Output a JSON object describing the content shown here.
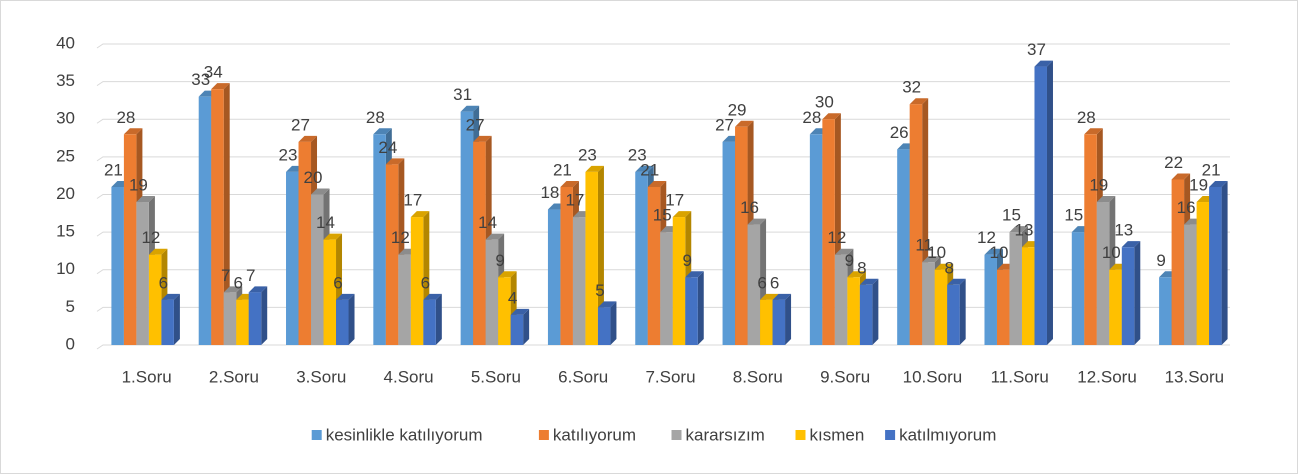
{
  "chart_data": {
    "type": "bar",
    "categories": [
      "1.Soru",
      "2.Soru",
      "3.Soru",
      "4.Soru",
      "5.Soru",
      "6.Soru",
      "7.Soru",
      "8.Soru",
      "9.Soru",
      "10.Soru",
      "11.Soru",
      "12.Soru",
      "13.Soru"
    ],
    "series": [
      {
        "name": "kesinlikle katılıyorum",
        "color": "#5b9bd5",
        "values": [
          21,
          33,
          23,
          28,
          31,
          18,
          23,
          27,
          28,
          26,
          12,
          15,
          9
        ]
      },
      {
        "name": "katılıyorum",
        "color": "#ed7d31",
        "values": [
          28,
          34,
          27,
          24,
          27,
          21,
          21,
          29,
          30,
          32,
          10,
          28,
          22
        ]
      },
      {
        "name": "kararsızım",
        "color": "#a5a5a5",
        "values": [
          19,
          7,
          20,
          12,
          14,
          17,
          15,
          16,
          12,
          11,
          15,
          19,
          16
        ]
      },
      {
        "name": "kısmen",
        "color": "#ffc000",
        "values": [
          12,
          6,
          14,
          17,
          9,
          23,
          17,
          6,
          9,
          10,
          13,
          10,
          19
        ]
      },
      {
        "name": "katılmıyorum",
        "color": "#4472c4",
        "values": [
          6,
          7,
          6,
          6,
          4,
          5,
          9,
          6,
          8,
          8,
          37,
          13,
          21
        ]
      }
    ],
    "ylim": [
      0,
      40
    ],
    "yticks": [
      0,
      5,
      10,
      15,
      20,
      25,
      30,
      35,
      40
    ],
    "grid": true,
    "legend": "bottom"
  }
}
